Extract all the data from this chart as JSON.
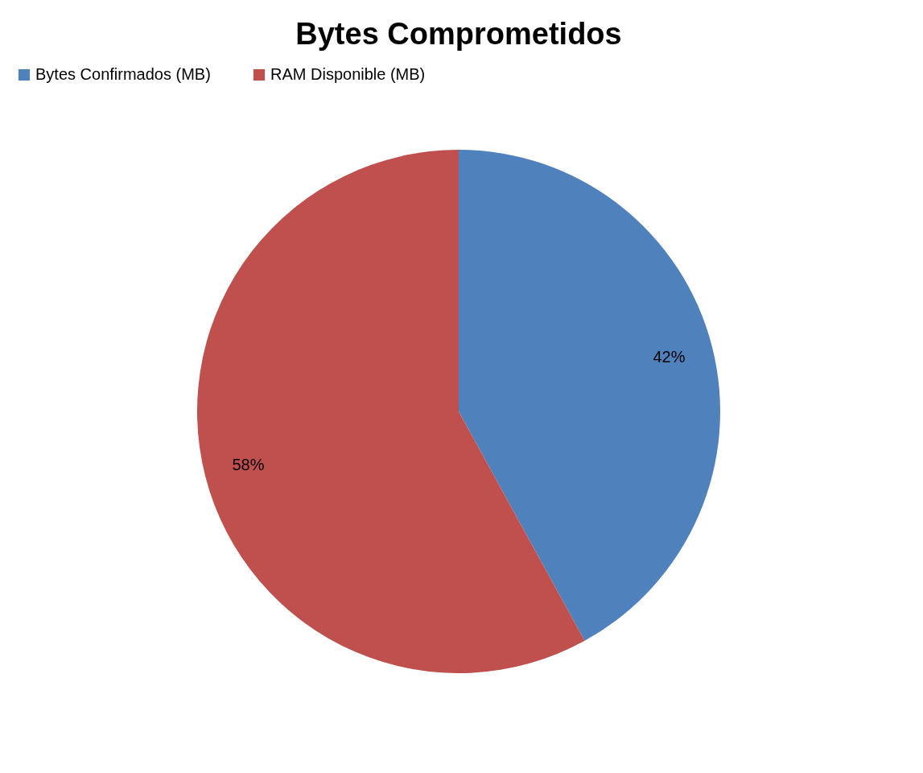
{
  "chart_data": {
    "type": "pie",
    "title": "Bytes Comprometidos",
    "categories": [
      "Bytes Confirmados (MB)",
      "RAM Disponible (MB)"
    ],
    "values": [
      42,
      58
    ],
    "colors": [
      "#4f81bd",
      "#c0504d"
    ],
    "value_labels": [
      "42%",
      "58%"
    ],
    "legend": "top"
  }
}
